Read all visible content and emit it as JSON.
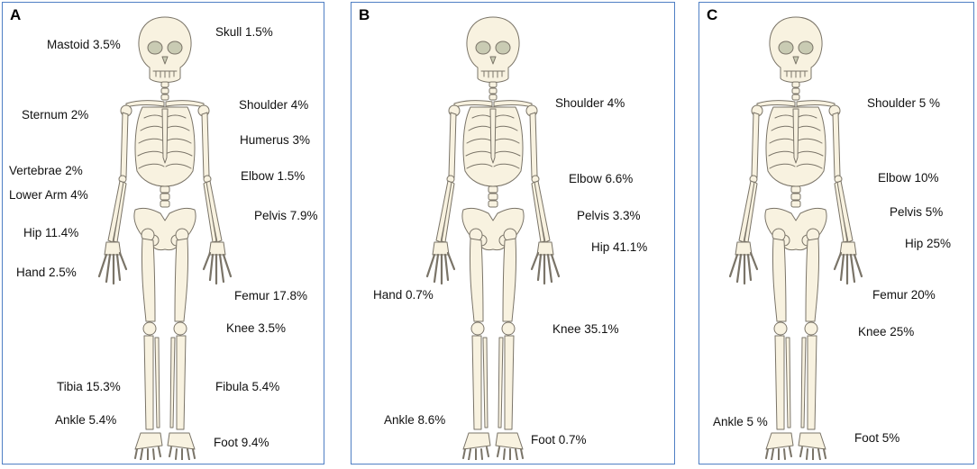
{
  "panels": [
    {
      "letter": "A",
      "labels": {
        "skull": "Skull 1.5%",
        "mastoid": "Mastoid 3.5%",
        "shoulder": "Shoulder 4%",
        "sternum": "Sternum 2%",
        "humerus": "Humerus 3%",
        "vertebrae": "Vertebrae 2%",
        "elbow": "Elbow 1.5%",
        "lower_arm": "Lower Arm 4%",
        "pelvis": "Pelvis 7.9%",
        "hip": "Hip 11.4%",
        "hand": "Hand 2.5%",
        "femur": "Femur 17.8%",
        "knee": "Knee 3.5%",
        "tibia": "Tibia 15.3%",
        "fibula": "Fibula 5.4%",
        "ankle": "Ankle 5.4%",
        "foot": "Foot 9.4%"
      }
    },
    {
      "letter": "B",
      "labels": {
        "shoulder": "Shoulder 4%",
        "elbow": "Elbow 6.6%",
        "pelvis": "Pelvis 3.3%",
        "hip": "Hip 41.1%",
        "hand": "Hand 0.7%",
        "knee": "Knee 35.1%",
        "ankle": "Ankle 8.6%",
        "foot": "Foot 0.7%"
      }
    },
    {
      "letter": "C",
      "labels": {
        "shoulder": "Shoulder 5 %",
        "elbow": "Elbow 10%",
        "pelvis": "Pelvis 5%",
        "hip": "Hip 25%",
        "femur": "Femur 20%",
        "knee": "Knee 25%",
        "ankle": "Ankle 5 %",
        "foot": "Foot 5%"
      }
    }
  ],
  "colors": {
    "border": "#4f7fc4",
    "bone_fill": "#f8f2e0",
    "bone_stroke": "#7a7468",
    "eye_socket": "#c9cbb3"
  }
}
